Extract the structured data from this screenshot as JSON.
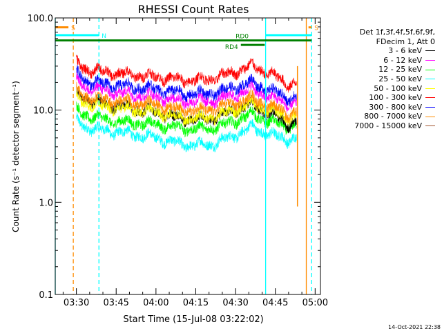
{
  "chart_data": {
    "type": "line",
    "title": "RHESSI Count Rates",
    "xlabel": "Start Time (15-Jul-08 03:22:02)",
    "ylabel": "Count Rate (s⁻¹ detector segment⁻¹)",
    "y_scale": "log",
    "ylim": [
      0.1,
      100
    ],
    "y_ticks": [
      0.1,
      1.0,
      10.0,
      100.0
    ],
    "y_tick_labels": [
      "0.1",
      "1.0",
      "10.0",
      "100.0"
    ],
    "xlim": [
      "03:22:02",
      "05:02:00"
    ],
    "x_ticks": [
      "03:30",
      "03:45",
      "04:00",
      "04:15",
      "04:30",
      "04:45",
      "05:00"
    ],
    "grid": false,
    "legend_position": "right",
    "legend_header": [
      "Det 1f,3f,4f,5f,6f,9f,",
      "FDecim 1, Att 0"
    ],
    "series": [
      {
        "name": "3 - 6 keV",
        "color": "#000000",
        "start": "03:30",
        "end": "04:53",
        "profile": [
          [
            "03:30",
            15
          ],
          [
            "03:35",
            12.5
          ],
          [
            "03:45",
            11
          ],
          [
            "04:00",
            9.5
          ],
          [
            "04:10",
            8
          ],
          [
            "04:20",
            8
          ],
          [
            "04:28",
            9.5
          ],
          [
            "04:36",
            11.5
          ],
          [
            "04:40",
            10
          ],
          [
            "04:45",
            8.5
          ],
          [
            "04:50",
            7
          ],
          [
            "04:53",
            7.5
          ]
        ]
      },
      {
        "name": "6 - 12 keV",
        "color": "#ff00ff",
        "start": "03:30",
        "end": "04:53",
        "profile": [
          [
            "03:30",
            21
          ],
          [
            "03:35",
            17
          ],
          [
            "03:45",
            15.5
          ],
          [
            "04:00",
            14
          ],
          [
            "04:10",
            12.5
          ],
          [
            "04:20",
            12.5
          ],
          [
            "04:28",
            14
          ],
          [
            "04:36",
            17
          ],
          [
            "04:40",
            15
          ],
          [
            "04:45",
            13
          ],
          [
            "04:50",
            11.5
          ],
          [
            "04:53",
            12
          ]
        ]
      },
      {
        "name": "12 - 25 keV",
        "color": "#00ff00",
        "start": "03:30",
        "end": "04:53",
        "profile": [
          [
            "03:30",
            10
          ],
          [
            "03:35",
            8.5
          ],
          [
            "03:45",
            7.5
          ],
          [
            "04:00",
            7
          ],
          [
            "04:10",
            6.3
          ],
          [
            "04:20",
            6.3
          ],
          [
            "04:28",
            7.2
          ],
          [
            "04:36",
            9
          ],
          [
            "04:40",
            8
          ],
          [
            "04:45",
            7.2
          ],
          [
            "04:50",
            6.5
          ],
          [
            "04:53",
            7
          ]
        ]
      },
      {
        "name": "25 - 50 keV",
        "color": "#00ffff",
        "start": "03:30",
        "end": "04:53",
        "profile": [
          [
            "03:30",
            7.5
          ],
          [
            "03:35",
            6.3
          ],
          [
            "03:45",
            5.8
          ],
          [
            "04:00",
            5
          ],
          [
            "04:10",
            4.2
          ],
          [
            "04:20",
            4.2
          ],
          [
            "04:28",
            5
          ],
          [
            "04:36",
            6.5
          ],
          [
            "04:40",
            5.8
          ],
          [
            "04:45",
            5.2
          ],
          [
            "04:50",
            4.8
          ],
          [
            "04:53",
            5
          ]
        ]
      },
      {
        "name": "50 - 100 keV",
        "color": "#ffff00",
        "start": "03:30",
        "end": "04:53",
        "profile": [
          [
            "03:30",
            13.5
          ],
          [
            "03:35",
            11.5
          ],
          [
            "03:45",
            10.5
          ],
          [
            "04:00",
            9.5
          ],
          [
            "04:10",
            8.2
          ],
          [
            "04:20",
            8.2
          ],
          [
            "04:28",
            9.5
          ],
          [
            "04:36",
            11.8
          ],
          [
            "04:40",
            10.5
          ],
          [
            "04:45",
            9.3
          ],
          [
            "04:50",
            8.3
          ],
          [
            "04:53",
            8.8
          ]
        ]
      },
      {
        "name": "100 - 300 keV",
        "color": "#ff0000",
        "start": "03:30",
        "end": "04:53",
        "profile": [
          [
            "03:30",
            32
          ],
          [
            "03:35",
            27
          ],
          [
            "03:45",
            25
          ],
          [
            "04:00",
            23
          ],
          [
            "04:10",
            21
          ],
          [
            "04:20",
            21.5
          ],
          [
            "04:28",
            25
          ],
          [
            "04:36",
            30
          ],
          [
            "04:40",
            27
          ],
          [
            "04:45",
            23
          ],
          [
            "04:50",
            19
          ],
          [
            "04:53",
            20
          ]
        ]
      },
      {
        "name": "300 - 800 keV",
        "color": "#0000ff",
        "start": "03:30",
        "end": "04:53",
        "profile": [
          [
            "03:30",
            25
          ],
          [
            "03:35",
            20
          ],
          [
            "03:45",
            18.5
          ],
          [
            "04:00",
            17
          ],
          [
            "04:10",
            15
          ],
          [
            "04:20",
            15
          ],
          [
            "04:28",
            17
          ],
          [
            "04:36",
            20
          ],
          [
            "04:40",
            18
          ],
          [
            "04:45",
            15.5
          ],
          [
            "04:50",
            13.5
          ],
          [
            "04:53",
            14
          ]
        ]
      },
      {
        "name": "800 - 7000 keV",
        "color": "#ff8c00",
        "start": "03:30",
        "end": "04:53",
        "profile": [
          [
            "03:30",
            16
          ],
          [
            "03:35",
            13.5
          ],
          [
            "03:45",
            12.5
          ],
          [
            "04:00",
            11.5
          ],
          [
            "04:10",
            10
          ],
          [
            "04:20",
            10
          ],
          [
            "04:28",
            11.5
          ],
          [
            "04:36",
            13.5
          ],
          [
            "04:40",
            12
          ],
          [
            "04:45",
            10.5
          ],
          [
            "04:50",
            9
          ],
          [
            "04:53",
            9.5
          ]
        ]
      },
      {
        "name": "7000 - 15000 keV",
        "color": "#a0522d",
        "start": "03:30",
        "end": "04:53",
        "profile": []
      }
    ],
    "annotation_bars": [
      {
        "label": "S",
        "color": "#ff8c00",
        "start": "03:22:02",
        "end": "03:27",
        "level": 79,
        "label_side": "right"
      },
      {
        "label": "S",
        "color": "#ff8c00",
        "start": "04:57:30",
        "end": "04:58:40",
        "level": 79,
        "label_side": "none"
      },
      {
        "label": "N",
        "color": "#00ffff",
        "start": "03:22:02",
        "end": "03:38:30",
        "level": 65,
        "label_side": "right"
      },
      {
        "label": "",
        "color": "#00ffff",
        "start": "04:41:20",
        "end": "04:58:40",
        "level": 65,
        "label_side": "none"
      },
      {
        "label": "RD0",
        "color": "#008000",
        "start": "03:22:02",
        "end": "04:58:40",
        "level": 57,
        "label_side": "above-right-center"
      },
      {
        "label": "RD4",
        "color": "#008000",
        "start": "04:32",
        "end": "04:41",
        "level": 51,
        "label_side": "left"
      }
    ],
    "vertical_lines": [
      {
        "time": "03:22:02",
        "color": "#00ffff",
        "style": "solid"
      },
      {
        "time": "03:28:50",
        "color": "#ff8c00",
        "style": "dashed"
      },
      {
        "time": "03:38:30",
        "color": "#00ffff",
        "style": "dashed"
      },
      {
        "time": "04:41:20",
        "color": "#00ffff",
        "style": "solid"
      },
      {
        "time": "04:56:40",
        "color": "#ff8c00",
        "style": "solid"
      },
      {
        "time": "04:58:40",
        "color": "#00ffff",
        "style": "dashed"
      }
    ],
    "spikes": [
      {
        "time": "04:53:20",
        "color": "#ff8c00",
        "from": 0.9,
        "to": 30
      }
    ]
  },
  "footer_date": "14-Oct-2021 22:38"
}
